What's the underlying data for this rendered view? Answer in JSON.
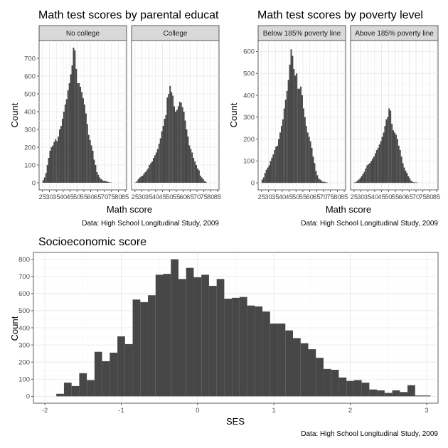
{
  "chart_data": [
    {
      "type": "bar",
      "title": "Math test scores by parental educat",
      "xlabel": "Math score",
      "ylabel": "Count",
      "caption": "Data: High School Longitudinal Study, 2009",
      "grid": true,
      "xlim": [
        22.5,
        86
      ],
      "ylim": [
        -40,
        800
      ],
      "x_ticks": [
        25,
        30,
        35,
        40,
        45,
        50,
        55,
        60,
        65,
        70,
        75,
        80,
        85
      ],
      "y_ticks": [
        0,
        100,
        200,
        300,
        400,
        500,
        600,
        700
      ],
      "bin_start": 24,
      "bin_width": 1,
      "panels": [
        {
          "strip": "No college",
          "values": [
            0,
            15,
            30,
            55,
            100,
            140,
            180,
            200,
            210,
            230,
            245,
            235,
            260,
            300,
            320,
            360,
            400,
            440,
            470,
            520,
            560,
            610,
            660,
            760,
            745,
            640,
            560,
            560,
            540,
            510,
            475,
            440,
            390,
            330,
            270,
            240,
            210,
            180,
            130,
            100,
            60,
            45,
            30,
            20,
            15,
            10,
            10,
            8,
            5,
            3,
            2,
            0
          ]
        },
        {
          "strip": "College",
          "values": [
            0,
            2,
            10,
            20,
            30,
            35,
            40,
            50,
            60,
            70,
            80,
            100,
            110,
            120,
            140,
            155,
            170,
            190,
            220,
            250,
            290,
            320,
            360,
            380,
            480,
            500,
            545,
            510,
            490,
            430,
            400,
            410,
            430,
            455,
            450,
            425,
            400,
            350,
            300,
            260,
            210,
            190,
            170,
            140,
            120,
            100,
            80,
            70,
            40,
            30,
            20,
            10,
            5
          ]
        }
      ]
    },
    {
      "type": "bar",
      "title": "Math test scores by poverty level",
      "xlabel": "Math score",
      "ylabel": "Count",
      "caption": "Data: High School Longitudinal Study, 2009",
      "grid": true,
      "xlim": [
        22.5,
        86
      ],
      "ylim": [
        -32,
        650
      ],
      "x_ticks": [
        25,
        30,
        35,
        40,
        45,
        50,
        55,
        60,
        65,
        70,
        75,
        80,
        85
      ],
      "y_ticks": [
        0,
        100,
        200,
        300,
        400,
        500,
        600
      ],
      "bin_start": 24,
      "bin_width": 1,
      "panels": [
        {
          "strip": "Below 185% poverty line",
          "values": [
            0,
            15,
            25,
            45,
            60,
            70,
            80,
            100,
            115,
            130,
            150,
            165,
            170,
            200,
            230,
            260,
            290,
            340,
            380,
            420,
            470,
            540,
            610,
            580,
            520,
            490,
            500,
            430,
            430,
            440,
            400,
            340,
            300,
            260,
            230,
            210,
            190,
            160,
            120,
            90,
            55,
            35,
            20,
            15,
            10,
            5,
            5,
            3,
            2
          ]
        },
        {
          "strip": "Above 185% poverty line",
          "values": [
            0,
            2,
            5,
            10,
            15,
            22,
            30,
            40,
            50,
            65,
            80,
            85,
            90,
            100,
            110,
            120,
            135,
            150,
            160,
            175,
            190,
            210,
            230,
            260,
            290,
            300,
            340,
            330,
            270,
            240,
            230,
            220,
            200,
            170,
            150,
            120,
            90,
            70,
            55,
            45,
            30,
            20,
            10,
            5,
            3,
            2,
            2,
            0
          ]
        }
      ]
    },
    {
      "type": "bar",
      "title": "Socioeconomic score",
      "xlabel": "SES",
      "ylabel": "Count",
      "caption": "Data: High School Longitudinal Study, 2009",
      "grid": true,
      "xlim": [
        -2.15,
        3.15
      ],
      "ylim": [
        -40,
        840
      ],
      "x_ticks": [
        -2,
        -1,
        0,
        1,
        2,
        3
      ],
      "y_ticks": [
        0,
        100,
        200,
        300,
        400,
        500,
        600,
        700,
        800
      ],
      "bin_start": -1.85,
      "bin_width": 0.1,
      "values": [
        15,
        80,
        60,
        135,
        95,
        260,
        205,
        255,
        350,
        305,
        565,
        550,
        590,
        710,
        715,
        800,
        685,
        750,
        695,
        710,
        645,
        685,
        570,
        575,
        580,
        530,
        525,
        495,
        425,
        425,
        385,
        340,
        310,
        275,
        225,
        160,
        155,
        110,
        90,
        95,
        80,
        40,
        35,
        20,
        35,
        25,
        65,
        5,
        5,
        0,
        0
      ]
    }
  ]
}
